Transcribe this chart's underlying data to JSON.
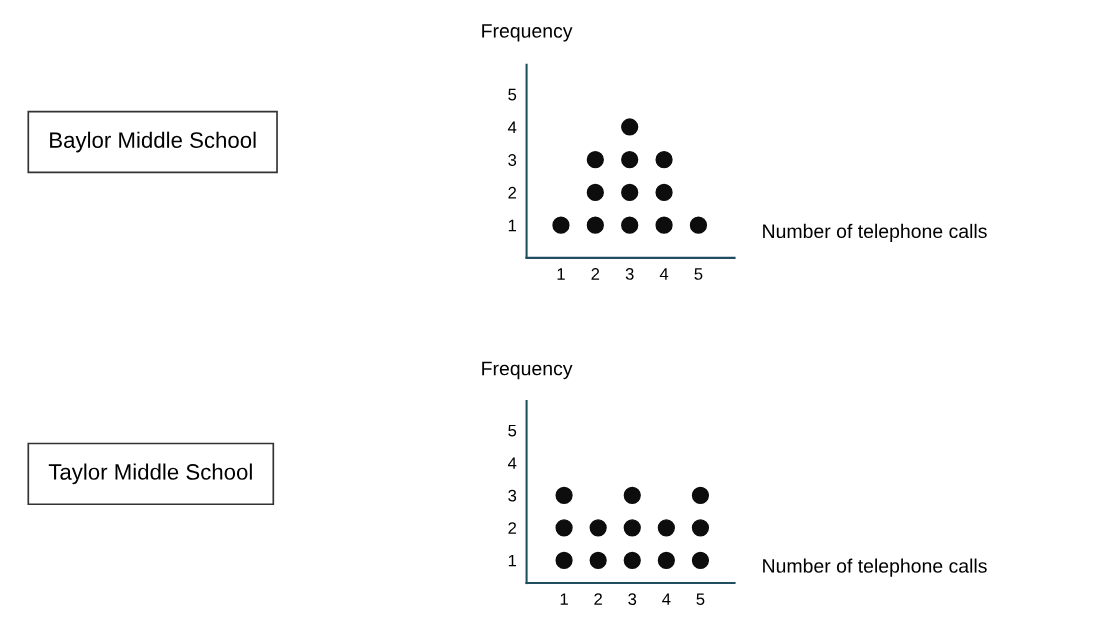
{
  "chart_data": [
    {
      "type": "scatter",
      "annotations": [
        "Baylor Middle School"
      ],
      "xlabel": "Number of telephone calls",
      "ylabel": "Frequency",
      "x": [
        1,
        2,
        2,
        2,
        3,
        3,
        3,
        3,
        4,
        4,
        4,
        5
      ],
      "values": [
        1,
        1,
        2,
        3,
        1,
        2,
        3,
        4,
        1,
        2,
        3,
        1
      ],
      "color": "#0d0d0d",
      "marker": "circle",
      "grid": false,
      "legend": false,
      "xlim": [
        0,
        6.05
      ],
      "ylim": [
        0,
        5.9
      ],
      "xticks": [
        1,
        2,
        3,
        4,
        5
      ],
      "yticks": [
        1,
        2,
        3,
        4,
        5
      ]
    },
    {
      "type": "scatter",
      "annotations": [
        "Taylor Middle School"
      ],
      "xlabel": "Number of telephone calls",
      "ylabel": "Frequency",
      "x": [
        1,
        1,
        1,
        2,
        2,
        3,
        3,
        3,
        4,
        4,
        5,
        5,
        5
      ],
      "values": [
        1,
        2,
        3,
        1,
        2,
        1,
        2,
        3,
        1,
        2,
        1,
        2,
        3
      ],
      "color": "#0d0d0d",
      "marker": "circle",
      "grid": false,
      "legend": false,
      "xlim": [
        -0.1,
        6
      ],
      "ylim": [
        0.3,
        5.9
      ],
      "xticks": [
        1,
        2,
        3,
        4,
        5
      ],
      "yticks": [
        1,
        2,
        3,
        4,
        5
      ]
    }
  ]
}
